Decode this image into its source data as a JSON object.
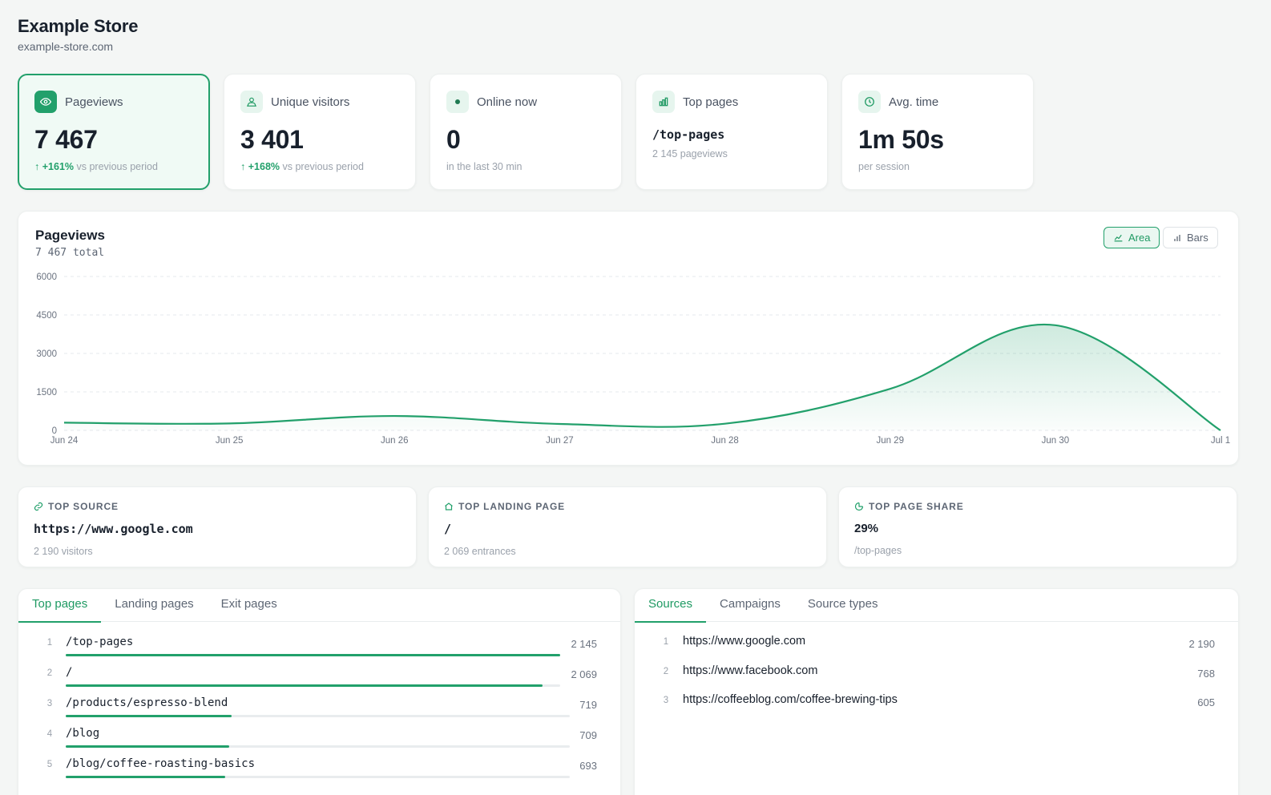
{
  "site": {
    "title": "Example Store",
    "domain": "example-store.com"
  },
  "stats": [
    {
      "icon": "eye-icon",
      "label": "Pageviews",
      "value": "7 467",
      "change": "+161%",
      "sub": "vs previous period"
    },
    {
      "icon": "users-icon",
      "label": "Unique visitors",
      "value": "3 401",
      "change": "+168%",
      "sub": "vs previous period"
    },
    {
      "icon": "online-dot-icon",
      "label": "Online now",
      "value": "0",
      "sub": "in the last 30 min"
    },
    {
      "icon": "bar-chart-icon",
      "label": "Top pages",
      "value": "/top-pages",
      "sub": "2 145 pageviews"
    },
    {
      "icon": "clock-icon",
      "label": "Avg. time",
      "value": "1m 50s",
      "sub": "per session"
    }
  ],
  "chart": {
    "title": "Pageviews",
    "total": "7 467 total",
    "toggle_area": "Area",
    "toggle_bars": "Bars"
  },
  "chart_data": {
    "type": "area",
    "categories": [
      "Jun 24",
      "Jun 25",
      "Jun 26",
      "Jun 27",
      "Jun 28",
      "Jun 29",
      "Jun 30",
      "Jul 1"
    ],
    "series": [
      {
        "values": [
          300,
          270,
          560,
          250,
          260,
          1620,
          4100,
          0
        ]
      }
    ],
    "yticks": [
      "6000",
      "4500",
      "3000",
      "1500",
      "0"
    ],
    "ylim": [
      0,
      6000
    ],
    "grid": true,
    "color": "#22a06b"
  },
  "highlights": [
    {
      "icon": "link-icon",
      "label": "TOP SOURCE",
      "value": "https://www.google.com",
      "sub": "2 190 visitors"
    },
    {
      "icon": "home-icon",
      "label": "TOP LANDING PAGE",
      "value": "/",
      "sub": "2 069 entrances"
    },
    {
      "icon": "pie-icon",
      "label": "TOP PAGE SHARE",
      "value": "29%",
      "sub": "/top-pages"
    }
  ],
  "pages_panel": {
    "tabs": [
      "Top pages",
      "Landing pages",
      "Exit pages"
    ],
    "rows": [
      {
        "rank": "1",
        "path": "/top-pages",
        "count": "2 145",
        "share": 1.0
      },
      {
        "rank": "2",
        "path": "/",
        "count": "2 069",
        "share": 0.965
      },
      {
        "rank": "3",
        "path": "/products/espresso-blend",
        "count": "719",
        "share": 0.335
      },
      {
        "rank": "4",
        "path": "/blog",
        "count": "709",
        "share": 0.33
      },
      {
        "rank": "5",
        "path": "/blog/coffee-roasting-basics",
        "count": "693",
        "share": 0.323
      }
    ]
  },
  "sources_panel": {
    "tabs": [
      "Sources",
      "Campaigns",
      "Source types"
    ],
    "rows": [
      {
        "rank": "1",
        "source": "https://www.google.com",
        "count": "2 190"
      },
      {
        "rank": "2",
        "source": "https://www.facebook.com",
        "count": "768"
      },
      {
        "rank": "3",
        "source": "https://coffeeblog.com/coffee-brewing-tips",
        "count": "605"
      }
    ]
  }
}
